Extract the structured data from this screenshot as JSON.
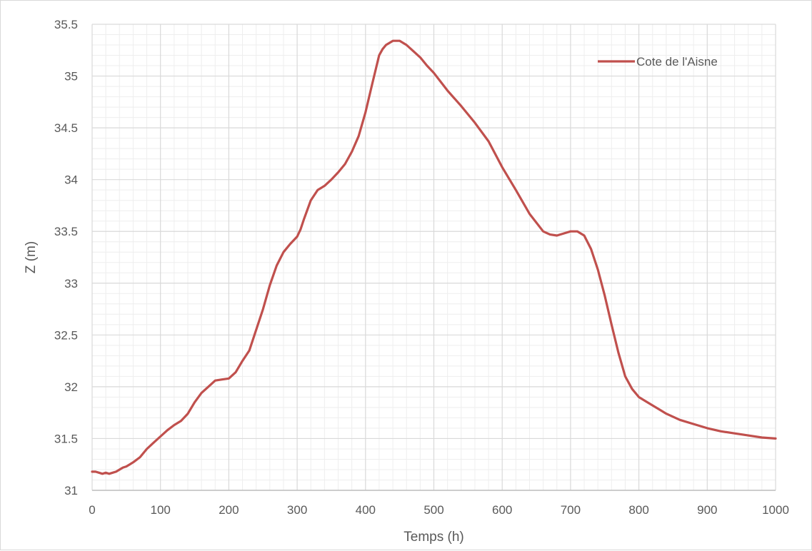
{
  "chart_data": {
    "type": "line",
    "title": "",
    "xlabel": "Temps (h)",
    "ylabel": "Z (m)",
    "xlim": [
      0,
      1000
    ],
    "ylim": [
      31,
      35.5
    ],
    "x_ticks": [
      "0",
      "100",
      "200",
      "300",
      "400",
      "500",
      "600",
      "700",
      "800",
      "900",
      "1000"
    ],
    "y_ticks": [
      "31",
      "31.5",
      "32",
      "32.5",
      "33",
      "33.5",
      "34",
      "34.5",
      "35",
      "35.5"
    ],
    "grid": "major and minor",
    "legend_position": "top-right",
    "series": [
      {
        "name": "Cote de l'Aisne",
        "color": "#c0504d",
        "x": [
          0,
          5,
          10,
          15,
          20,
          25,
          30,
          35,
          40,
          45,
          50,
          55,
          60,
          70,
          80,
          90,
          100,
          110,
          120,
          130,
          140,
          150,
          160,
          170,
          180,
          190,
          200,
          210,
          220,
          230,
          240,
          250,
          260,
          270,
          280,
          290,
          300,
          305,
          310,
          320,
          330,
          340,
          350,
          360,
          370,
          380,
          390,
          400,
          410,
          420,
          425,
          430,
          440,
          450,
          460,
          470,
          480,
          490,
          500,
          520,
          540,
          560,
          580,
          600,
          620,
          640,
          660,
          670,
          680,
          690,
          700,
          710,
          720,
          730,
          740,
          750,
          760,
          770,
          780,
          790,
          800,
          810,
          820,
          830,
          840,
          860,
          880,
          900,
          920,
          940,
          960,
          980,
          1000
        ],
        "values": [
          31.18,
          31.18,
          31.17,
          31.16,
          31.17,
          31.16,
          31.17,
          31.18,
          31.2,
          31.22,
          31.23,
          31.25,
          31.27,
          31.32,
          31.4,
          31.46,
          31.52,
          31.58,
          31.63,
          31.67,
          31.74,
          31.85,
          31.94,
          32.0,
          32.06,
          32.07,
          32.08,
          32.14,
          32.25,
          32.35,
          32.55,
          32.75,
          32.98,
          33.17,
          33.3,
          33.38,
          33.45,
          33.52,
          33.62,
          33.8,
          33.9,
          33.94,
          34.0,
          34.07,
          34.15,
          34.27,
          34.42,
          34.65,
          34.93,
          35.2,
          35.26,
          35.3,
          35.34,
          35.34,
          35.3,
          35.24,
          35.18,
          35.1,
          35.03,
          34.86,
          34.71,
          34.55,
          34.37,
          34.12,
          33.9,
          33.67,
          33.5,
          33.47,
          33.46,
          33.48,
          33.5,
          33.5,
          33.46,
          33.33,
          33.13,
          32.88,
          32.6,
          32.33,
          32.1,
          31.98,
          31.9,
          31.86,
          31.82,
          31.78,
          31.74,
          31.68,
          31.64,
          31.6,
          31.57,
          31.55,
          31.53,
          31.51,
          31.5
        ]
      }
    ]
  }
}
